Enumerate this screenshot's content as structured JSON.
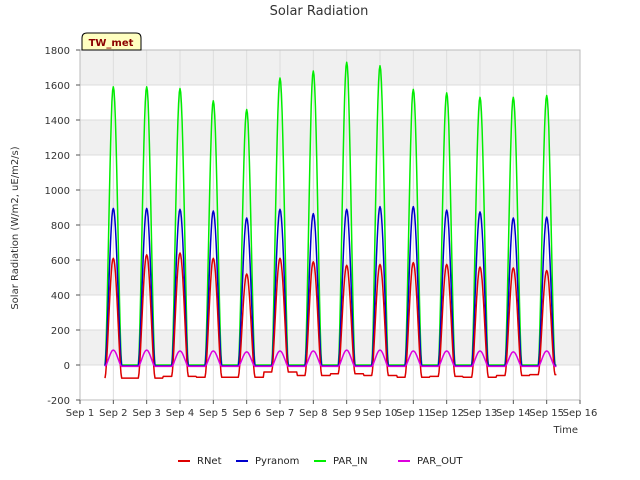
{
  "chart_data": {
    "type": "line",
    "title": "Solar Radiation",
    "xlabel": "Time",
    "ylabel": "Solar Radiation (W/m2, uE/m2/s)",
    "station_label": "TW_met",
    "x_ticks": [
      "Sep 1",
      "Sep 2",
      "Sep 3",
      "Sep 4",
      "Sep 5",
      "Sep 6",
      "Sep 7",
      "Sep 8",
      "Sep 9",
      "Sep 10",
      "Sep 11",
      "Sep 12",
      "Sep 13",
      "Sep 14",
      "Sep 15",
      "Sep 16"
    ],
    "xlim": [
      "Sep 1",
      "Sep 16"
    ],
    "y_ticks": [
      -200,
      0,
      200,
      400,
      600,
      800,
      1000,
      1200,
      1400,
      1600,
      1800
    ],
    "ylim": [
      -200,
      1800
    ],
    "grid": true,
    "legend_placement": "bottom",
    "days": [
      "Sep 2",
      "Sep 3",
      "Sep 4",
      "Sep 5",
      "Sep 6",
      "Sep 7",
      "Sep 8",
      "Sep 9",
      "Sep 10",
      "Sep 11",
      "Sep 12",
      "Sep 13",
      "Sep 14",
      "Sep 15"
    ],
    "series": [
      {
        "name": "RNet",
        "color": "#dd0000",
        "daily_peak": [
          610,
          630,
          640,
          610,
          520,
          610,
          590,
          570,
          575,
          585,
          575,
          560,
          555,
          540
        ],
        "night_value": [
          -75,
          -75,
          -65,
          -70,
          -70,
          -40,
          -60,
          -50,
          -60,
          -70,
          -65,
          -70,
          -60,
          -55
        ]
      },
      {
        "name": "Pyranom",
        "color": "#0000cc",
        "daily_peak": [
          895,
          895,
          890,
          880,
          840,
          890,
          865,
          890,
          905,
          905,
          885,
          875,
          840,
          845
        ],
        "night_value": [
          -5,
          -5,
          -5,
          -5,
          -5,
          -5,
          -5,
          -5,
          -5,
          -5,
          -5,
          -5,
          -5,
          -5
        ]
      },
      {
        "name": "PAR_IN",
        "color": "#00ee00",
        "daily_peak": [
          1590,
          1590,
          1580,
          1510,
          1460,
          1640,
          1680,
          1730,
          1710,
          1575,
          1555,
          1530,
          1530,
          1540
        ],
        "night_value": [
          0,
          0,
          0,
          0,
          0,
          0,
          0,
          0,
          0,
          0,
          0,
          0,
          0,
          0
        ]
      },
      {
        "name": "PAR_OUT",
        "color": "#dd00dd",
        "daily_peak": [
          85,
          85,
          80,
          80,
          75,
          80,
          80,
          85,
          85,
          80,
          80,
          80,
          75,
          80
        ],
        "night_value": [
          -8,
          -8,
          -8,
          -8,
          -8,
          -8,
          -8,
          -8,
          -8,
          -8,
          -8,
          -8,
          -8,
          -8
        ]
      }
    ]
  }
}
